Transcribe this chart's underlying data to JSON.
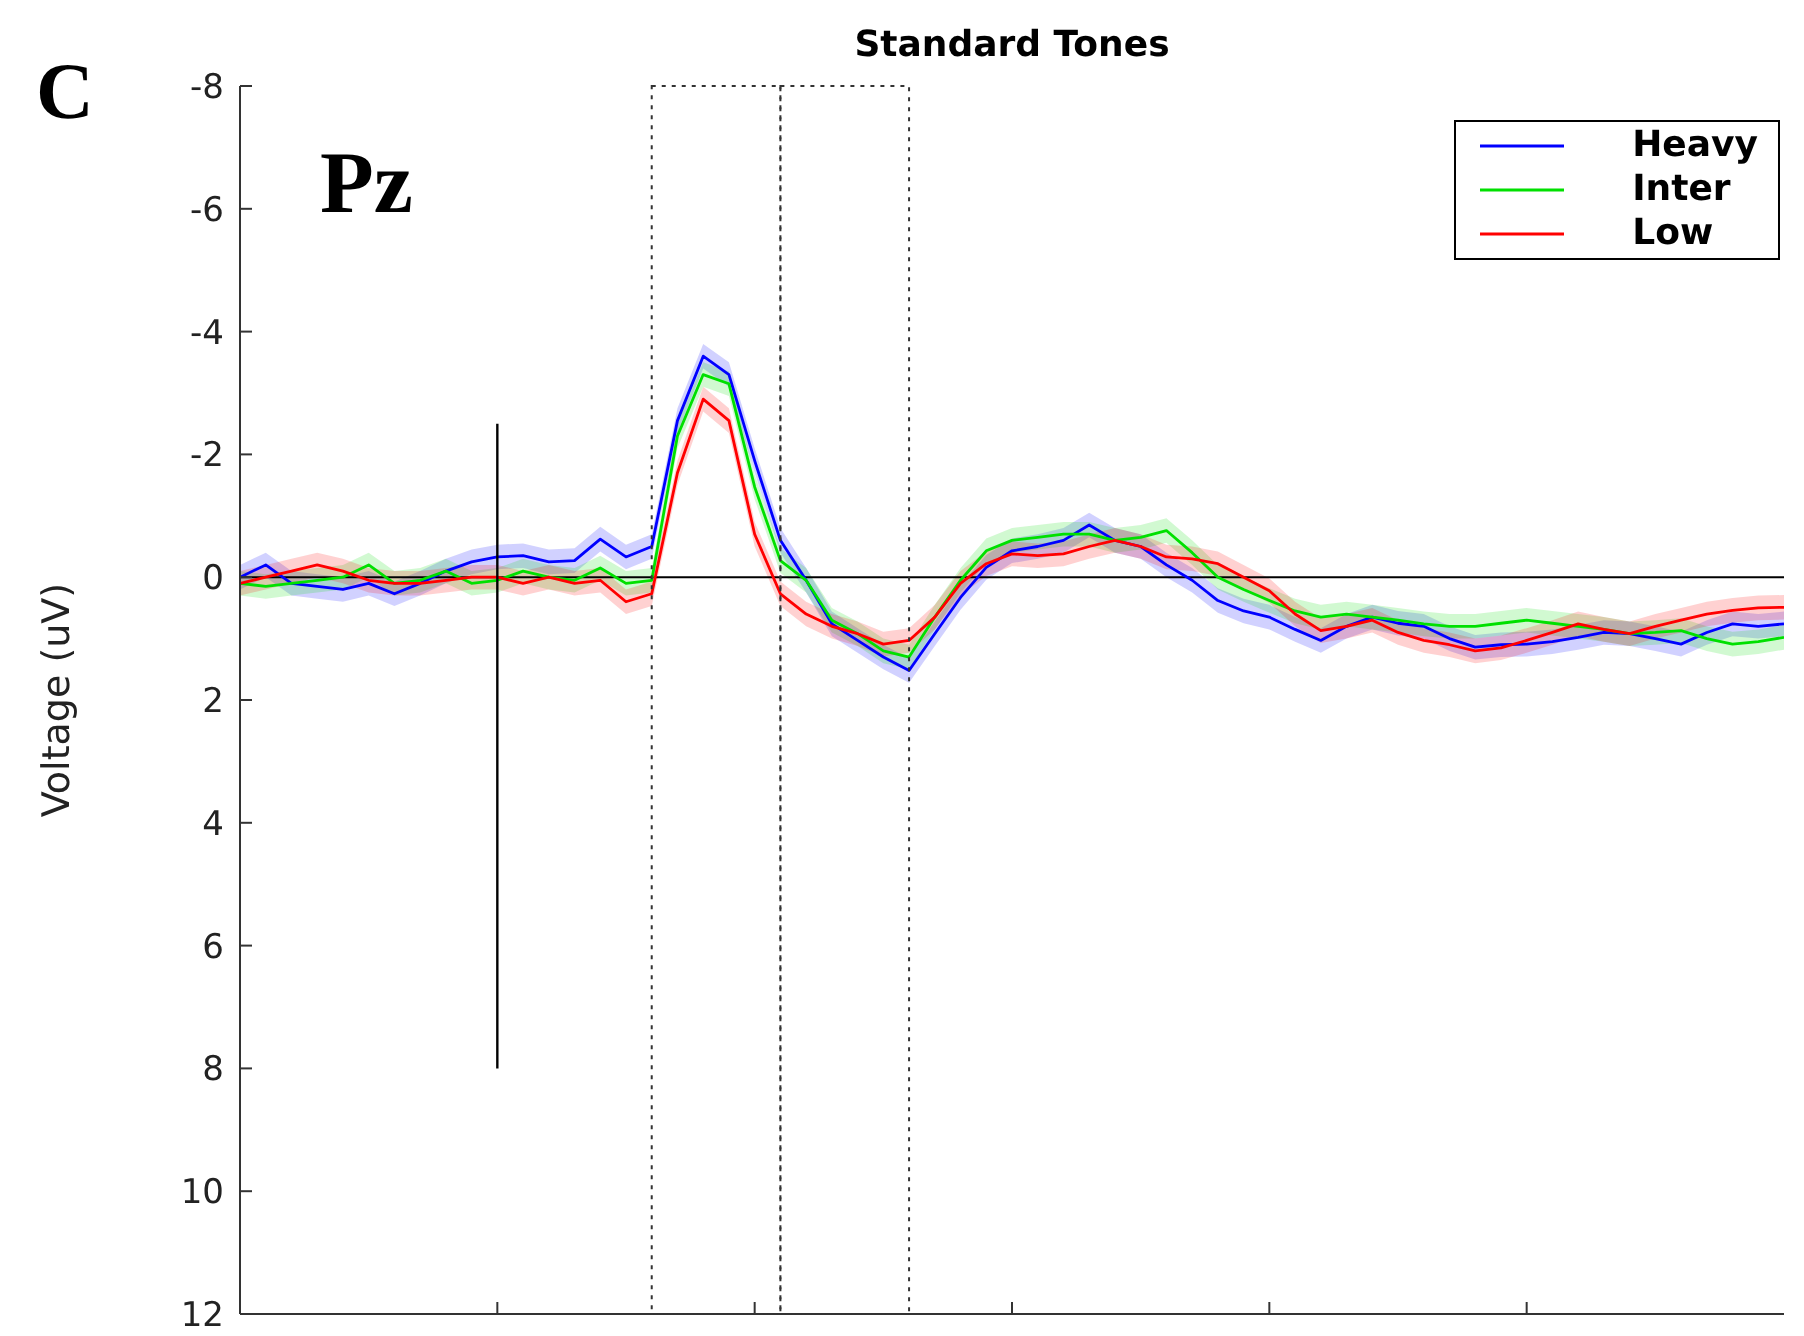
{
  "chart_data": {
    "type": "line",
    "title": "Standard Tones",
    "ylabel": "Voltage (uV)",
    "annotations": [
      "C",
      "Pz"
    ],
    "categories": [
      null,
      null,
      null,
      null,
      null,
      null,
      null,
      null,
      null,
      null,
      null,
      null,
      null,
      null,
      null,
      null,
      null,
      null,
      null,
      null,
      null,
      null,
      null,
      null,
      null,
      null,
      null,
      null,
      null,
      null,
      null,
      null,
      null,
      null,
      null,
      null,
      null,
      null,
      null,
      null,
      null,
      null,
      null,
      null,
      null,
      null,
      null,
      null,
      null,
      null,
      null,
      null,
      null,
      null,
      null,
      null,
      null,
      null,
      null,
      null,
      null
    ],
    "ylim": [
      12,
      -8
    ],
    "yticks": [
      -8,
      -6,
      -4,
      -2,
      0,
      2,
      4,
      6,
      8,
      10,
      12
    ],
    "tick_labels": "y",
    "legend": "top right",
    "marker": "none",
    "line_style": "solid",
    "ref_lines": [
      {
        "axis": "y",
        "value": 0,
        "color": "#000000"
      }
    ],
    "series": [
      {
        "name": "Heavy",
        "color": "#0000ff",
        "values": [
          0,
          -0.2,
          0.1,
          0.15,
          0.2,
          0.1,
          0.27,
          0.1,
          -0.1,
          -0.25,
          -0.33,
          -0.35,
          -0.25,
          -0.27,
          -0.62,
          -0.33,
          -0.5,
          -2.55,
          -3.6,
          -3.3,
          -1.9,
          -0.6,
          0.05,
          0.76,
          1.03,
          1.3,
          1.52,
          0.92,
          0.33,
          -0.16,
          -0.43,
          -0.5,
          -0.6,
          -0.85,
          -0.6,
          -0.5,
          -0.2,
          0.05,
          0.38,
          0.55,
          0.65,
          0.85,
          1.03,
          0.8,
          0.65,
          0.75,
          0.8,
          1.0,
          1.14,
          1.1,
          1.09,
          1.05,
          0.98,
          0.9,
          0.92,
          1.0,
          1.09,
          0.9,
          0.76,
          0.8,
          0.76
        ],
        "lower": [
          -0.2,
          -0.4,
          -0.1,
          -0.05,
          0,
          -0.1,
          0.07,
          -0.1,
          -0.3,
          -0.45,
          -0.53,
          -0.55,
          -0.45,
          -0.47,
          -0.82,
          -0.53,
          -0.7,
          -2.75,
          -3.8,
          -3.5,
          -2.1,
          -0.8,
          -0.15,
          0.56,
          0.83,
          1.1,
          1.32,
          0.72,
          0.13,
          -0.36,
          -0.63,
          -0.7,
          -0.8,
          -1.05,
          -0.8,
          -0.7,
          -0.4,
          -0.15,
          0.18,
          0.35,
          0.45,
          0.65,
          0.83,
          0.6,
          0.45,
          0.55,
          0.6,
          0.8,
          0.94,
          0.9,
          0.89,
          0.85,
          0.78,
          0.7,
          0.72,
          0.8,
          0.89,
          0.7,
          0.56,
          0.6,
          0.56
        ],
        "upper": [
          0.2,
          0,
          0.3,
          0.35,
          0.4,
          0.3,
          0.47,
          0.3,
          0.1,
          -0.05,
          -0.13,
          -0.15,
          -0.05,
          -0.07,
          -0.42,
          -0.13,
          -0.3,
          -2.35,
          -3.4,
          -3.1,
          -1.7,
          -0.4,
          0.25,
          0.96,
          1.23,
          1.5,
          1.72,
          1.12,
          0.53,
          0.04,
          -0.23,
          -0.3,
          -0.4,
          -0.65,
          -0.4,
          -0.3,
          0,
          0.25,
          0.58,
          0.75,
          0.85,
          1.05,
          1.23,
          1.0,
          0.85,
          0.95,
          1.0,
          1.2,
          1.34,
          1.3,
          1.29,
          1.25,
          1.18,
          1.1,
          1.12,
          1.2,
          1.29,
          1.1,
          0.96,
          1.0,
          0.96
        ]
      },
      {
        "name": "Inter",
        "color": "#00e000",
        "values": [
          0.1,
          0.15,
          0.1,
          0.05,
          0,
          -0.2,
          0.1,
          0.05,
          -0.1,
          0.1,
          0.05,
          -0.1,
          0,
          0.05,
          -0.15,
          0.1,
          0.05,
          -2.3,
          -3.3,
          -3.15,
          -1.47,
          -0.27,
          0.05,
          0.7,
          0.92,
          1.2,
          1.3,
          0.65,
          0.05,
          -0.43,
          -0.6,
          -0.65,
          -0.7,
          -0.7,
          -0.6,
          -0.65,
          -0.76,
          -0.4,
          0,
          0.2,
          0.38,
          0.55,
          0.65,
          0.6,
          0.65,
          0.7,
          0.76,
          0.8,
          0.8,
          0.75,
          0.7,
          0.75,
          0.8,
          0.85,
          0.92,
          0.9,
          0.87,
          1.0,
          1.09,
          1.05,
          0.98
        ],
        "lower": [
          -0.1,
          -0.05,
          -0.1,
          -0.15,
          -0.2,
          -0.4,
          -0.1,
          -0.15,
          -0.3,
          -0.1,
          -0.15,
          -0.3,
          -0.2,
          -0.15,
          -0.35,
          -0.1,
          -0.15,
          -2.5,
          -3.5,
          -3.35,
          -1.67,
          -0.47,
          -0.15,
          0.5,
          0.72,
          1.0,
          1.1,
          0.45,
          -0.15,
          -0.63,
          -0.8,
          -0.85,
          -0.9,
          -0.9,
          -0.8,
          -0.85,
          -0.96,
          -0.6,
          -0.2,
          0,
          0.18,
          0.35,
          0.45,
          0.4,
          0.45,
          0.5,
          0.56,
          0.6,
          0.6,
          0.55,
          0.5,
          0.55,
          0.6,
          0.65,
          0.72,
          0.7,
          0.67,
          0.8,
          0.89,
          0.85,
          0.78
        ],
        "upper": [
          0.3,
          0.35,
          0.3,
          0.25,
          0.2,
          0,
          0.3,
          0.25,
          0.1,
          0.3,
          0.25,
          0.1,
          0.2,
          0.25,
          0.05,
          0.3,
          0.25,
          -2.1,
          -3.1,
          -2.95,
          -1.27,
          -0.07,
          0.25,
          0.9,
          1.12,
          1.4,
          1.5,
          0.85,
          0.25,
          -0.23,
          -0.4,
          -0.45,
          -0.5,
          -0.5,
          -0.4,
          -0.45,
          -0.56,
          -0.2,
          0.2,
          0.4,
          0.58,
          0.75,
          0.85,
          0.8,
          0.85,
          0.9,
          0.96,
          1.0,
          1.0,
          0.95,
          0.9,
          0.95,
          1.0,
          1.05,
          1.12,
          1.1,
          1.07,
          1.2,
          1.29,
          1.25,
          1.18
        ]
      },
      {
        "name": "Low",
        "color": "#ff0000",
        "values": [
          0.1,
          0,
          -0.1,
          -0.2,
          -0.1,
          0.05,
          0.1,
          0.1,
          0.05,
          0,
          0,
          0.1,
          0,
          0.1,
          0.05,
          0.4,
          0.27,
          -1.7,
          -2.9,
          -2.55,
          -0.7,
          0.27,
          0.6,
          0.8,
          0.92,
          1.09,
          1.03,
          0.65,
          0.1,
          -0.22,
          -0.38,
          -0.35,
          -0.38,
          -0.5,
          -0.6,
          -0.5,
          -0.33,
          -0.3,
          -0.22,
          0,
          0.22,
          0.6,
          0.87,
          0.8,
          0.7,
          0.9,
          1.03,
          1.1,
          1.2,
          1.15,
          1.03,
          0.9,
          0.76,
          0.85,
          0.92,
          0.8,
          0.7,
          0.6,
          0.54,
          0.5,
          0.49
        ],
        "lower": [
          -0.1,
          -0.2,
          -0.3,
          -0.4,
          -0.3,
          -0.15,
          -0.1,
          -0.1,
          -0.15,
          -0.2,
          -0.2,
          -0.1,
          -0.2,
          -0.1,
          -0.15,
          0.2,
          0.07,
          -1.9,
          -3.1,
          -2.75,
          -0.9,
          0.07,
          0.4,
          0.6,
          0.72,
          0.89,
          0.83,
          0.45,
          -0.1,
          -0.42,
          -0.58,
          -0.55,
          -0.58,
          -0.7,
          -0.8,
          -0.7,
          -0.53,
          -0.5,
          -0.42,
          -0.2,
          0.02,
          0.4,
          0.67,
          0.6,
          0.5,
          0.7,
          0.83,
          0.9,
          1.0,
          0.95,
          0.83,
          0.7,
          0.56,
          0.65,
          0.72,
          0.6,
          0.5,
          0.4,
          0.34,
          0.3,
          0.29
        ],
        "upper": [
          0.3,
          0.2,
          0.1,
          0,
          0.1,
          0.25,
          0.3,
          0.3,
          0.25,
          0.2,
          0.2,
          0.3,
          0.2,
          0.3,
          0.25,
          0.6,
          0.47,
          -1.5,
          -2.7,
          -2.35,
          -0.5,
          0.47,
          0.8,
          1.0,
          1.12,
          1.29,
          1.23,
          0.85,
          0.3,
          -0.02,
          -0.18,
          -0.15,
          -0.18,
          -0.3,
          -0.4,
          -0.3,
          -0.13,
          -0.1,
          -0.02,
          0.2,
          0.42,
          0.8,
          1.07,
          1.0,
          0.9,
          1.1,
          1.23,
          1.3,
          1.4,
          1.35,
          1.23,
          1.1,
          0.96,
          1.05,
          1.12,
          1.0,
          0.9,
          0.8,
          0.74,
          0.7,
          0.69
        ]
      }
    ]
  }
}
